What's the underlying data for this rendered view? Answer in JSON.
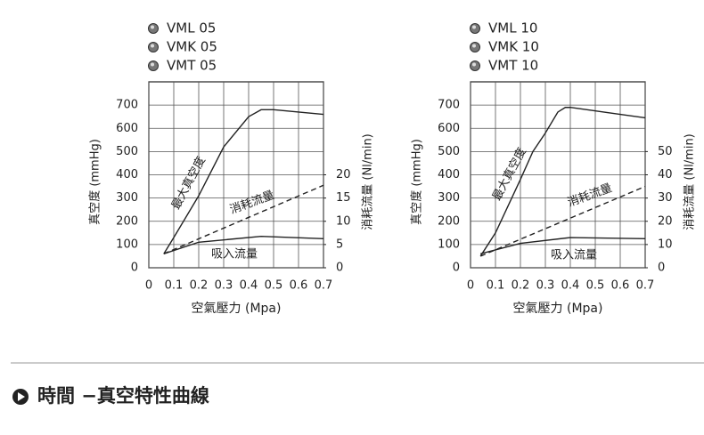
{
  "chart_data": [
    {
      "type": "line",
      "models": [
        "VML 05",
        "VMK 05",
        "VMT 05"
      ],
      "xlabel": "空氣壓力 (Mpa)",
      "ylabel": "真空度 (mmHg)",
      "y2label": "消耗流量 (Nl/min)",
      "xlim": [
        0,
        0.7
      ],
      "xticks": [
        0,
        0.1,
        0.2,
        0.3,
        0.4,
        0.5,
        0.6,
        0.7
      ],
      "ylim": [
        0,
        800
      ],
      "yticks": [
        0,
        100,
        200,
        300,
        400,
        500,
        600,
        700
      ],
      "y2lim": [
        0,
        40
      ],
      "y2ticks": [
        0,
        5,
        10,
        15,
        20
      ],
      "grid": true,
      "series": [
        {
          "name": "最大真空度",
          "color": "#222222",
          "x": [
            0.06,
            0.1,
            0.2,
            0.3,
            0.4,
            0.45,
            0.5,
            0.7
          ],
          "values": [
            60,
            130,
            310,
            520,
            650,
            680,
            680,
            660
          ]
        },
        {
          "name": "消耗流量",
          "color": "#222222",
          "dashed": true,
          "axis": "y2",
          "x": [
            0.06,
            0.7
          ],
          "values": [
            3,
            17.75
          ]
        },
        {
          "name": "吸入流量",
          "color": "#222222",
          "axis": "y2",
          "x": [
            0.06,
            0.2,
            0.3,
            0.45,
            0.7
          ],
          "values": [
            3,
            5.5,
            6,
            6.75,
            6.25
          ]
        }
      ]
    },
    {
      "type": "line",
      "models": [
        "VML 10",
        "VMK 10",
        "VMT 10"
      ],
      "xlabel": "空氣壓力 (Mpa)",
      "ylabel": "真空度 (mmHg)",
      "y2label": "消耗流量 (Nl/min)",
      "xlim": [
        0,
        0.7
      ],
      "xticks": [
        0,
        0.1,
        0.2,
        0.3,
        0.4,
        0.5,
        0.6,
        0.7
      ],
      "ylim": [
        0,
        800
      ],
      "yticks": [
        0,
        100,
        200,
        300,
        400,
        500,
        600,
        700
      ],
      "y2lim": [
        0,
        80
      ],
      "y2ticks": [
        0,
        10,
        20,
        30,
        40,
        50
      ],
      "grid": true,
      "series": [
        {
          "name": "最大真空度",
          "color": "#222222",
          "x": [
            0.04,
            0.1,
            0.2,
            0.25,
            0.3,
            0.35,
            0.38,
            0.4,
            0.7
          ],
          "values": [
            50,
            150,
            380,
            500,
            580,
            670,
            690,
            690,
            645
          ]
        },
        {
          "name": "消耗流量",
          "color": "#222222",
          "dashed": true,
          "axis": "y2",
          "x": [
            0.04,
            0.7
          ],
          "values": [
            5,
            35
          ]
        },
        {
          "name": "吸入流量",
          "color": "#222222",
          "axis": "y2",
          "x": [
            0.04,
            0.2,
            0.4,
            0.7
          ],
          "values": [
            6,
            10.5,
            13,
            12.5
          ]
        }
      ]
    }
  ],
  "section_title": "時間 −真空特性曲線"
}
